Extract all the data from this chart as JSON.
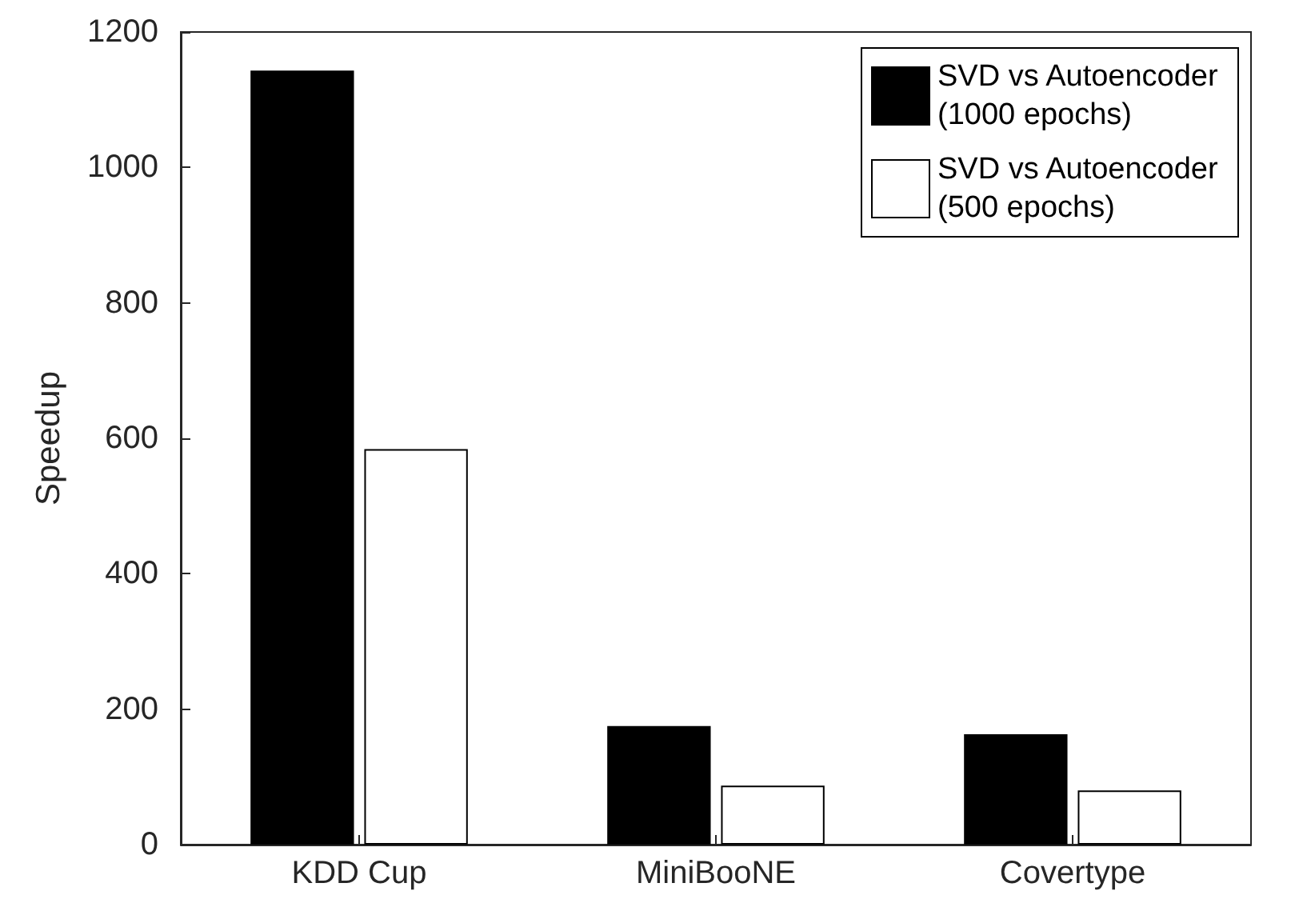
{
  "chart_data": {
    "type": "bar",
    "ylabel": "Speedup",
    "categories": [
      "KDD Cup",
      "MiniBooNE",
      "Covertype"
    ],
    "series": [
      {
        "name": "SVD vs Autoencoder (1000 epochs)",
        "color": "#000000",
        "values": [
          1143,
          175,
          163
        ]
      },
      {
        "name": "SVD vs Autoencoder (500 epochs)",
        "color": "#ffffff",
        "values": [
          584,
          87,
          80
        ]
      }
    ],
    "ylim": [
      0,
      1200
    ],
    "yticks": [
      0,
      200,
      400,
      600,
      800,
      1000,
      1200
    ],
    "grid": false,
    "legend": "top right"
  }
}
